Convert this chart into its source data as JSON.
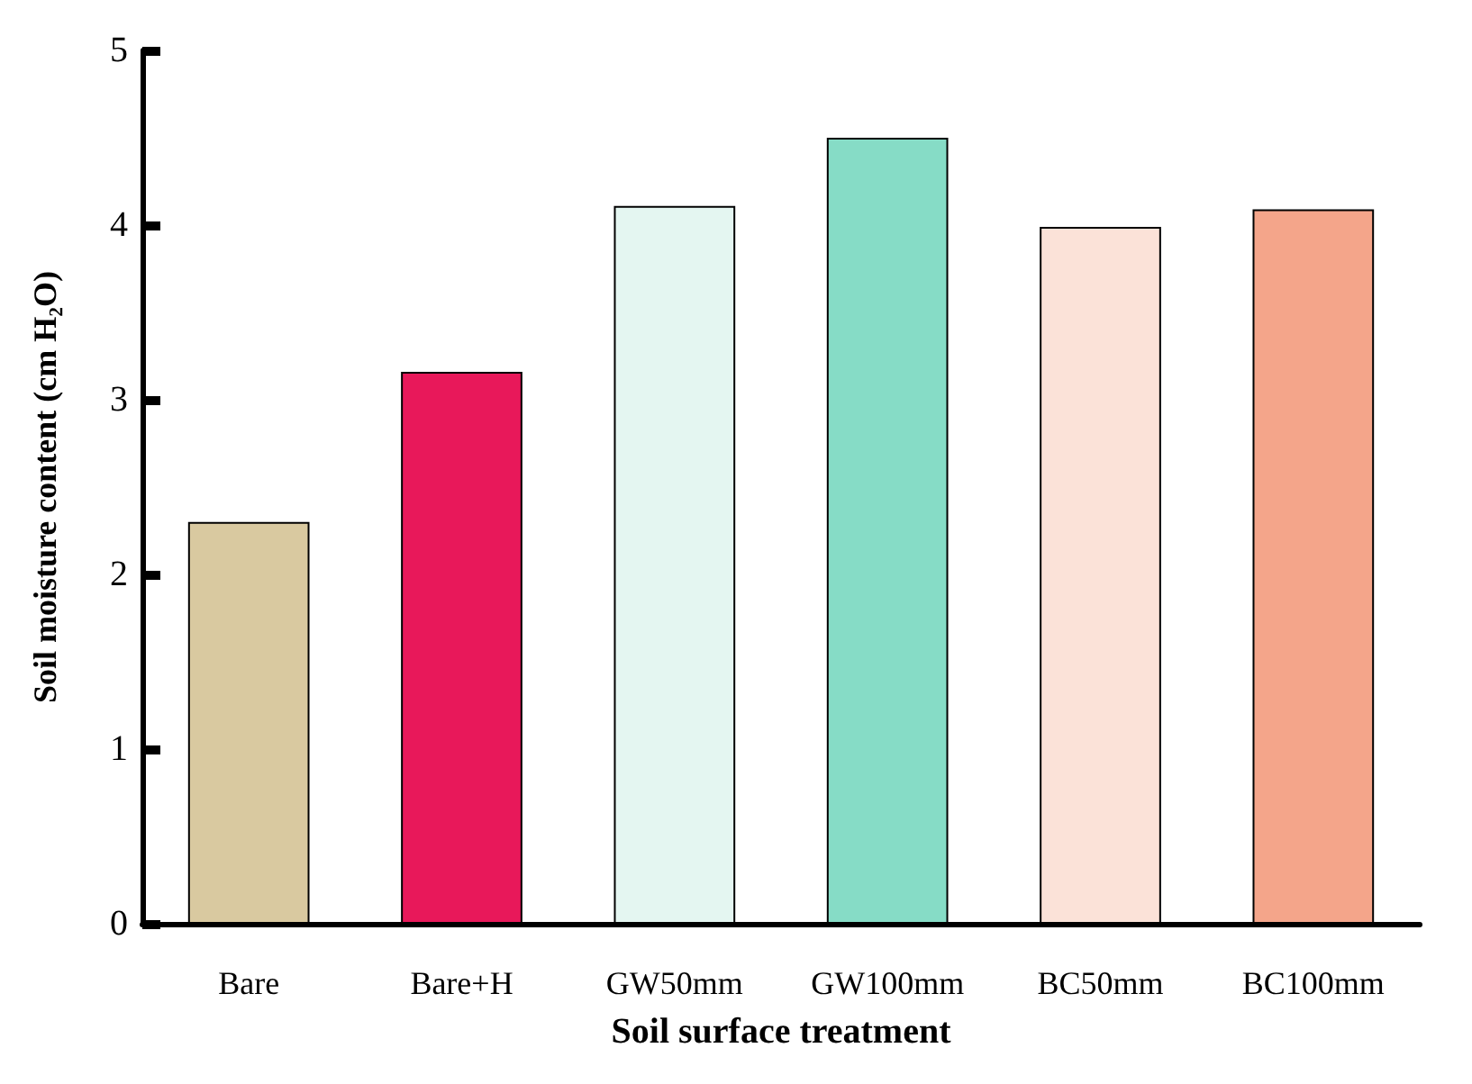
{
  "chart_data": {
    "type": "bar",
    "xlabel": "Soil surface treatment",
    "ylabel": "Soil moisture content (cm H₂O)",
    "categories": [
      "Bare",
      "Bare+H",
      "GW50mm",
      "GW100mm",
      "BC50mm",
      "BC100mm"
    ],
    "values": [
      2.3,
      3.16,
      4.11,
      4.5,
      3.99,
      4.09
    ],
    "colors": [
      "#d9c9a0",
      "#e8185a",
      "#e4f6f1",
      "#86dcc6",
      "#fbe2d8",
      "#f4a58a"
    ],
    "ylim": [
      0,
      5
    ],
    "yticks": [
      0,
      1,
      2,
      3,
      4,
      5
    ],
    "grid": false
  }
}
